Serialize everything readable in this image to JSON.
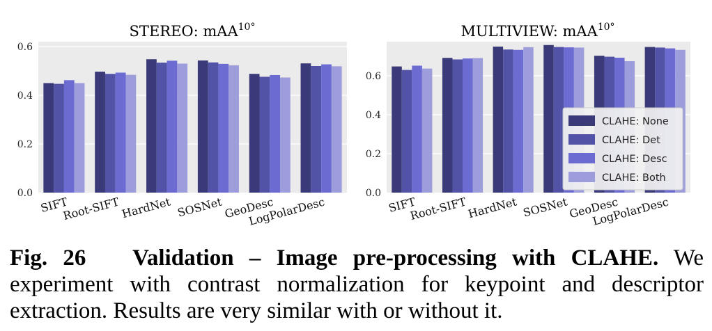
{
  "colors": {
    "plot_bg": "#ebebeb",
    "grid": "#ffffff",
    "series": [
      "#3a3a78",
      "#5252a6",
      "#6b6bd2",
      "#9d9ddc"
    ]
  },
  "chart_data": [
    {
      "type": "bar",
      "title": "STEREO: mAA",
      "title_superscript": "10°",
      "categories": [
        "SIFT",
        "Root-SIFT",
        "HardNet",
        "SOSNet",
        "GeoDesc",
        "LogPolarDesc"
      ],
      "ylim": [
        0,
        0.62
      ],
      "yticks": [
        0.0,
        0.2,
        0.4,
        0.6
      ],
      "ytick_labels": [
        "0.0",
        "0.2",
        "0.4",
        "0.6"
      ],
      "legend": false,
      "series": [
        {
          "name": "CLAHE: None",
          "values": [
            0.45,
            0.497,
            0.548,
            0.543,
            0.488,
            0.531
          ]
        },
        {
          "name": "CLAHE: Det",
          "values": [
            0.447,
            0.488,
            0.534,
            0.535,
            0.476,
            0.52
          ]
        },
        {
          "name": "CLAHE: Desc",
          "values": [
            0.462,
            0.493,
            0.542,
            0.529,
            0.483,
            0.527
          ]
        },
        {
          "name": "CLAHE: Both",
          "values": [
            0.45,
            0.484,
            0.53,
            0.523,
            0.473,
            0.519
          ]
        }
      ]
    },
    {
      "type": "bar",
      "title": "MULTIVIEW: mAA",
      "title_superscript": "10°",
      "categories": [
        "SIFT",
        "Root-SIFT",
        "HardNet",
        "SOSNet",
        "GeoDesc",
        "LogPolarDesc"
      ],
      "ylim": [
        0,
        0.775
      ],
      "yticks": [
        0.0,
        0.2,
        0.4,
        0.6
      ],
      "ytick_labels": [
        "0.0",
        "0.2",
        "0.4",
        "0.6"
      ],
      "legend": true,
      "legend_position": "right",
      "series": [
        {
          "name": "CLAHE: None",
          "values": [
            0.648,
            0.692,
            0.75,
            0.758,
            0.703,
            0.748
          ]
        },
        {
          "name": "CLAHE: Det",
          "values": [
            0.63,
            0.684,
            0.735,
            0.748,
            0.698,
            0.745
          ]
        },
        {
          "name": "CLAHE: Desc",
          "values": [
            0.652,
            0.689,
            0.733,
            0.746,
            0.693,
            0.741
          ]
        },
        {
          "name": "CLAHE: Both",
          "values": [
            0.637,
            0.691,
            0.747,
            0.745,
            0.675,
            0.733
          ]
        }
      ]
    }
  ],
  "caption": {
    "label": "Fig. 26",
    "title": "Validation – Image pre-processing with CLAHE.",
    "body": "We experiment with contrast normalization for keypoint and descriptor extraction. Results are very similar with or without it."
  }
}
